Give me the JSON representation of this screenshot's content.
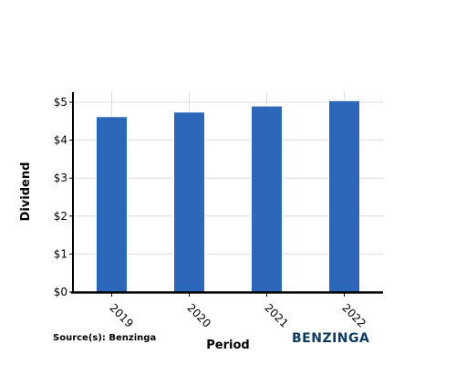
{
  "chart_data": {
    "type": "bar",
    "categories": [
      "2019",
      "2020",
      "2021",
      "2022"
    ],
    "values": [
      4.62,
      4.74,
      4.9,
      5.04
    ],
    "xlabel": "Period",
    "ylabel": "Dividend",
    "ylim": [
      0,
      5
    ],
    "yticks": [
      "$0",
      "$1",
      "$2",
      "$3",
      "$4",
      "$5"
    ],
    "grid": true,
    "bar_color": "#2d67b9"
  },
  "source": "Source(s): Benzinga",
  "brand": {
    "name": "BENZINGA",
    "color": "#0d3a63"
  }
}
